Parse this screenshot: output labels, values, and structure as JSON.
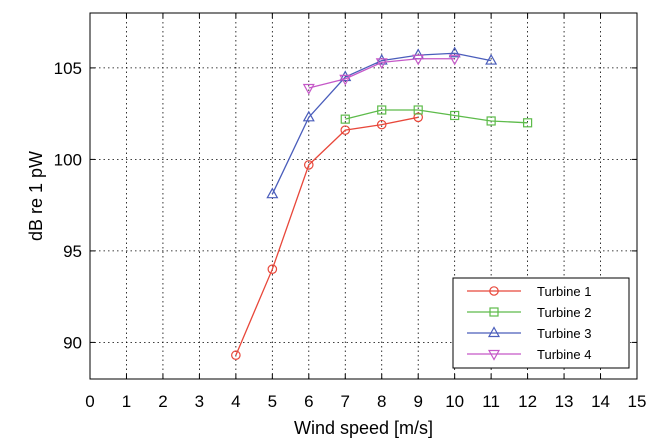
{
  "chart_data": {
    "type": "line",
    "title": "",
    "xlabel": "Wind speed [m/s]",
    "ylabel": "dB re 1 pW",
    "xlim": [
      0,
      15
    ],
    "ylim": [
      88,
      108
    ],
    "xticks": [
      "0",
      "1",
      "2",
      "3",
      "4",
      "5",
      "6",
      "7",
      "8",
      "9",
      "10",
      "11",
      "12",
      "13",
      "14",
      "15"
    ],
    "yticks": [
      "90",
      "95",
      "100",
      "105"
    ],
    "grid": true,
    "legend_position": "bottom-right",
    "series": [
      {
        "name": "Turbine 1",
        "color": "#e8473a",
        "marker": "circle",
        "x": [
          4,
          5,
          6,
          7,
          8,
          9
        ],
        "y": [
          89.3,
          94.0,
          99.7,
          101.6,
          101.9,
          102.3
        ]
      },
      {
        "name": "Turbine 2",
        "color": "#5dbb4a",
        "marker": "square",
        "x": [
          7,
          8,
          9,
          10,
          11,
          12
        ],
        "y": [
          102.2,
          102.7,
          102.7,
          102.4,
          102.1,
          102.0
        ]
      },
      {
        "name": "Turbine 3",
        "color": "#4a5dbb",
        "marker": "triangle-up",
        "x": [
          5,
          6,
          7,
          8,
          9,
          10,
          11
        ],
        "y": [
          98.1,
          102.3,
          104.5,
          105.4,
          105.7,
          105.8,
          105.4
        ]
      },
      {
        "name": "Turbine 4",
        "color": "#c558c8",
        "marker": "triangle-down",
        "x": [
          6,
          7,
          8,
          9,
          10
        ],
        "y": [
          103.9,
          104.4,
          105.3,
          105.5,
          105.5
        ]
      }
    ]
  }
}
